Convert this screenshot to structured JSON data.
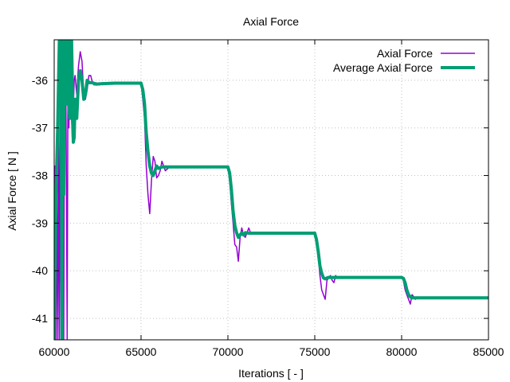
{
  "chart_data": {
    "type": "line",
    "title": "Axial Force",
    "xlabel": "Iterations [ - ]",
    "ylabel": "Axial Force [ N ]",
    "xlim": [
      60000,
      85000
    ],
    "ylim": [
      -41.45,
      -35.15
    ],
    "x_ticks": [
      "60000",
      "65000",
      "70000",
      "75000",
      "80000",
      "85000"
    ],
    "y_ticks": [
      "-36",
      "-37",
      "-38",
      "-39",
      "-40",
      "-41"
    ],
    "x_tick_values": [
      60000,
      65000,
      70000,
      75000,
      80000,
      85000
    ],
    "y_tick_values": [
      -36,
      -37,
      -38,
      -39,
      -40,
      -41
    ],
    "grid": true,
    "legend_position": "top-right",
    "series": [
      {
        "name": "Axial Force",
        "color": "#9400d3",
        "x": [
          60000,
          60050,
          60100,
          60150,
          60200,
          60250,
          60300,
          60350,
          60400,
          60500,
          60550,
          60600,
          60650,
          60700,
          60750,
          60800,
          60850,
          60900,
          60950,
          61000,
          61050,
          61100,
          61150,
          61200,
          61300,
          61400,
          61500,
          61600,
          61700,
          61800,
          61900,
          62000,
          62100,
          62200,
          62300,
          62400,
          62600,
          62800,
          63000,
          63500,
          64000,
          64500,
          65000,
          65100,
          65200,
          65300,
          65400,
          65500,
          65600,
          65700,
          65800,
          65900,
          66000,
          66100,
          66200,
          66300,
          66400,
          66600,
          67000,
          68000,
          69000,
          70000,
          70100,
          70200,
          70300,
          70400,
          70500,
          70600,
          70700,
          70800,
          70900,
          71000,
          71100,
          71200,
          71300,
          71500,
          72000,
          73000,
          74000,
          75000,
          75100,
          75200,
          75300,
          75400,
          75500,
          75600,
          75700,
          75800,
          75900,
          76000,
          76100,
          76200,
          76300,
          76500,
          77000,
          78000,
          79000,
          80000,
          80100,
          80200,
          80300,
          80400,
          80500,
          80600,
          80700,
          80800,
          80900,
          81000,
          81200,
          81500,
          82000,
          83000,
          84000,
          85000
        ],
        "y": [
          -41.45,
          -37.8,
          -41.45,
          -38.2,
          -41.45,
          -37.0,
          -41.45,
          -36.0,
          -35.15,
          -35.15,
          -41.45,
          -35.15,
          -35.15,
          -38.0,
          -41.45,
          -35.15,
          -37.0,
          -35.15,
          -35.15,
          -36.8,
          -37.3,
          -36.6,
          -36.0,
          -35.9,
          -36.3,
          -35.7,
          -35.4,
          -35.6,
          -36.3,
          -36.4,
          -36.2,
          -35.9,
          -35.9,
          -36.05,
          -36.1,
          -36.05,
          -36.1,
          -36.05,
          -36.07,
          -36.06,
          -36.06,
          -36.07,
          -36.06,
          -36.4,
          -36.8,
          -37.8,
          -38.4,
          -38.8,
          -38.1,
          -37.6,
          -37.7,
          -38.05,
          -38.0,
          -37.9,
          -37.7,
          -37.8,
          -37.9,
          -37.83,
          -37.82,
          -37.83,
          -37.82,
          -37.83,
          -38.1,
          -38.6,
          -39.0,
          -39.45,
          -39.5,
          -39.8,
          -39.3,
          -39.1,
          -39.25,
          -39.3,
          -39.2,
          -39.1,
          -39.2,
          -39.22,
          -39.21,
          -39.21,
          -39.22,
          -39.21,
          -39.4,
          -39.7,
          -40.1,
          -40.4,
          -40.5,
          -40.6,
          -40.2,
          -40.15,
          -40.1,
          -40.2,
          -40.25,
          -40.1,
          -40.15,
          -40.14,
          -40.14,
          -40.15,
          -40.14,
          -40.14,
          -40.2,
          -40.4,
          -40.5,
          -40.6,
          -40.7,
          -40.5,
          -40.55,
          -40.6,
          -40.55,
          -40.58,
          -40.57,
          -40.56,
          -40.57,
          -40.57,
          -40.56,
          -40.57
        ]
      },
      {
        "name": "Average Axial Force",
        "color": "#009e73",
        "x": [
          60000,
          60100,
          60200,
          60300,
          60400,
          60450,
          60500,
          60550,
          60600,
          60650,
          60700,
          60750,
          60800,
          60850,
          60900,
          60950,
          61000,
          61050,
          61100,
          61150,
          61200,
          61300,
          61400,
          61500,
          61600,
          61700,
          61800,
          61900,
          62000,
          62200,
          62400,
          62800,
          63500,
          64000,
          64500,
          65000,
          65100,
          65200,
          65300,
          65400,
          65500,
          65600,
          65700,
          65800,
          65900,
          66000,
          66200,
          66500,
          67000,
          68000,
          69000,
          70000,
          70100,
          70200,
          70300,
          70400,
          70500,
          70600,
          70700,
          70800,
          70900,
          71000,
          71200,
          71500,
          72000,
          73000,
          74000,
          75000,
          75100,
          75200,
          75300,
          75400,
          75500,
          75600,
          75700,
          75800,
          76000,
          76300,
          77000,
          78000,
          79000,
          80000,
          80100,
          80200,
          80300,
          80400,
          80500,
          80600,
          80800,
          81000,
          81500,
          82000,
          83000,
          84000,
          85000
        ],
        "y": [
          -41.45,
          -38.5,
          -37.0,
          -35.15,
          -35.15,
          -41.45,
          -35.15,
          -38.4,
          -35.15,
          -35.15,
          -36.5,
          -35.15,
          -35.15,
          -36.6,
          -36.8,
          -35.2,
          -35.15,
          -36.2,
          -37.3,
          -37.2,
          -36.4,
          -36.8,
          -36.0,
          -35.8,
          -36.0,
          -36.4,
          -36.3,
          -36.0,
          -36.05,
          -36.05,
          -36.08,
          -36.07,
          -36.06,
          -36.06,
          -36.06,
          -36.06,
          -36.2,
          -36.5,
          -37.1,
          -37.5,
          -37.8,
          -37.95,
          -38.0,
          -37.9,
          -37.8,
          -37.85,
          -37.82,
          -37.82,
          -37.82,
          -37.82,
          -37.82,
          -37.82,
          -37.95,
          -38.3,
          -38.75,
          -39.05,
          -39.2,
          -39.3,
          -39.25,
          -39.2,
          -39.25,
          -39.2,
          -39.21,
          -39.21,
          -39.21,
          -39.21,
          -39.21,
          -39.21,
          -39.35,
          -39.6,
          -39.9,
          -40.05,
          -40.15,
          -40.17,
          -40.15,
          -40.14,
          -40.14,
          -40.14,
          -40.14,
          -40.14,
          -40.14,
          -40.14,
          -40.16,
          -40.25,
          -40.4,
          -40.5,
          -40.55,
          -40.57,
          -40.57,
          -40.57,
          -40.57,
          -40.57,
          -40.57,
          -40.57,
          -40.57
        ]
      }
    ]
  }
}
